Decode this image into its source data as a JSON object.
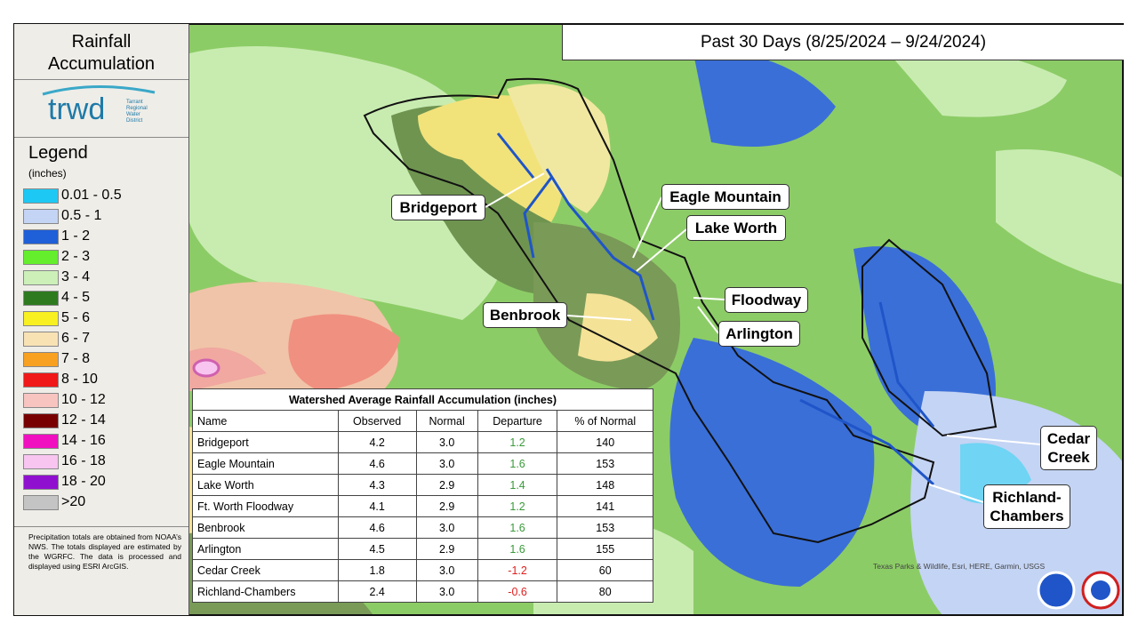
{
  "sidebar": {
    "title_lines": [
      "Rainfall",
      "Accumulation"
    ],
    "logo": "trwd",
    "logo_caption": [
      "Tarrant",
      "Regional",
      "Water",
      "District"
    ],
    "legend_title": "Legend",
    "legend_units": "(inches)",
    "legend": [
      {
        "label": "0.01 - 0.5",
        "color": "#1ec8f4"
      },
      {
        "label": "0.5 - 1",
        "color": "#c4d4f4"
      },
      {
        "label": "1 - 2",
        "color": "#1f5fd8"
      },
      {
        "label": "2 - 3",
        "color": "#64ee2c"
      },
      {
        "label": "3 - 4",
        "color": "#ccf0b8"
      },
      {
        "label": "4 - 5",
        "color": "#2e7a1e"
      },
      {
        "label": "5 - 6",
        "color": "#f8f020"
      },
      {
        "label": "6 - 7",
        "color": "#f8e2b4"
      },
      {
        "label": "7 - 8",
        "color": "#f8a020"
      },
      {
        "label": "8 - 10",
        "color": "#f01818"
      },
      {
        "label": "10 - 12",
        "color": "#f8c4c0"
      },
      {
        "label": "12 - 14",
        "color": "#780000"
      },
      {
        "label": "14 - 16",
        "color": "#f010c0"
      },
      {
        "label": "16 - 18",
        "color": "#f8c4f0"
      },
      {
        "label": "18 - 20",
        "color": "#9010d0"
      },
      {
        "label": ">20",
        "color": "#c4c4c4"
      }
    ],
    "note": "Precipitation totals are obtained from NOAA’s NWS. The totals displayed are estimated by the WGRFC. The data is processed and displayed using ESRI ArcGIS."
  },
  "header": {
    "title": "Past 30 Days (8/25/2024 – 9/24/2024)"
  },
  "map_labels": [
    {
      "lines": [
        "Bridgeport"
      ]
    },
    {
      "lines": [
        "Eagle Mountain"
      ]
    },
    {
      "lines": [
        "Lake Worth"
      ]
    },
    {
      "lines": [
        "Floodway"
      ]
    },
    {
      "lines": [
        "Benbrook"
      ]
    },
    {
      "lines": [
        "Arlington"
      ]
    },
    {
      "lines": [
        "Cedar",
        "Creek"
      ]
    },
    {
      "lines": [
        "Richland-",
        "Chambers"
      ]
    }
  ],
  "attribution": "Texas Parks & Wildlife, Esri, HERE, Garmin, USGS",
  "table": {
    "title": "Watershed Average Rainfall Accumulation (inches)",
    "columns": [
      "Name",
      "Observed",
      "Normal",
      "Departure",
      "% of Normal"
    ],
    "rows": [
      [
        "Bridgeport",
        "4.2",
        "3.0",
        "1.2",
        "140"
      ],
      [
        "Eagle Mountain",
        "4.6",
        "3.0",
        "1.6",
        "153"
      ],
      [
        "Lake Worth",
        "4.3",
        "2.9",
        "1.4",
        "148"
      ],
      [
        "Ft. Worth Floodway",
        "4.1",
        "2.9",
        "1.2",
        "141"
      ],
      [
        "Benbrook",
        "4.6",
        "3.0",
        "1.6",
        "153"
      ],
      [
        "Arlington",
        "4.5",
        "2.9",
        "1.6",
        "155"
      ],
      [
        "Cedar Creek",
        "1.8",
        "3.0",
        "-1.2",
        "60"
      ],
      [
        "Richland-Chambers",
        "2.4",
        "3.0",
        "-0.6",
        "80"
      ]
    ]
  }
}
